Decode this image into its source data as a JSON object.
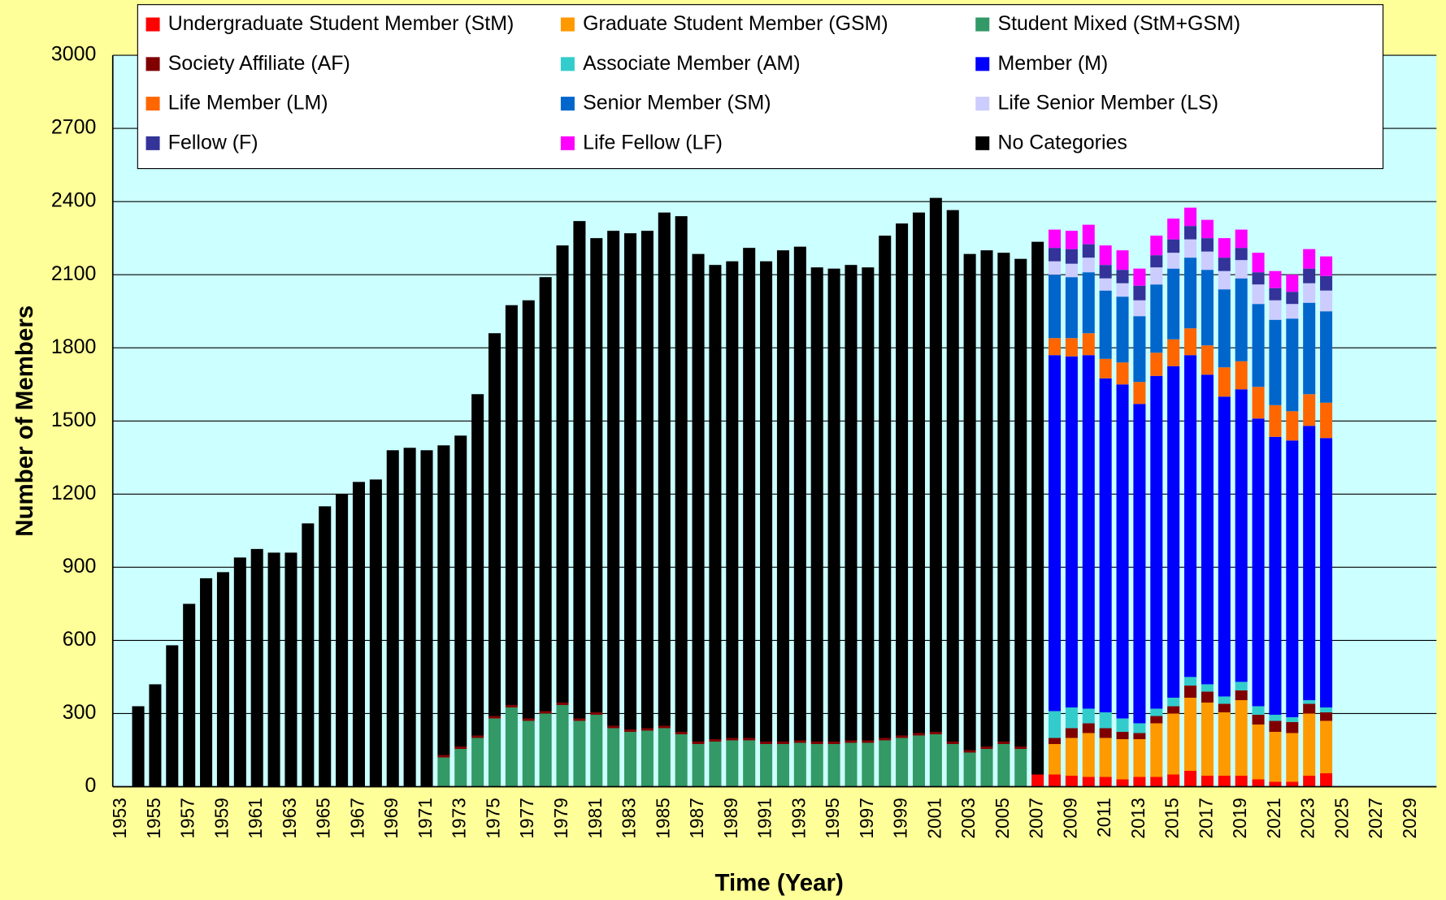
{
  "chart_data": {
    "type": "stacked_bar",
    "x_label": "Time (Year)",
    "y_label": "Number of Members",
    "ylim": [
      0,
      3000
    ],
    "yticks": [
      0,
      300,
      600,
      900,
      1200,
      1500,
      1800,
      2100,
      2400,
      2700,
      3000
    ],
    "grid": true,
    "legend": "top",
    "categories": [
      "1953",
      null,
      "1955",
      null,
      "1957",
      null,
      "1959",
      null,
      "1961",
      null,
      "1963",
      null,
      "1965",
      null,
      "1967",
      null,
      "1969",
      null,
      "1971",
      null,
      "1973",
      null,
      "1975",
      null,
      "1977",
      null,
      "1979",
      null,
      "1981",
      null,
      "1983",
      null,
      "1985",
      null,
      "1987",
      null,
      "1989",
      null,
      "1991",
      null,
      "1993",
      null,
      "1995",
      null,
      "1997",
      null,
      "1999",
      null,
      "2001",
      null,
      "2003",
      null,
      "2005",
      null,
      "2007",
      null,
      "2009",
      null,
      "2011",
      null,
      "2013",
      null,
      "2015",
      null,
      "2017",
      null,
      "2019",
      null,
      "2021",
      null,
      "2023",
      null,
      "2025",
      null,
      "2027",
      null,
      "2029",
      null
    ],
    "series": [
      {
        "name": "Undergraduate Student Member (StM)",
        "color": "#ff0000",
        "values": [
          null,
          null,
          null,
          null,
          null,
          null,
          null,
          null,
          null,
          null,
          null,
          null,
          null,
          null,
          null,
          null,
          null,
          null,
          null,
          null,
          null,
          null,
          null,
          null,
          null,
          null,
          null,
          null,
          null,
          null,
          null,
          null,
          null,
          null,
          null,
          null,
          null,
          null,
          null,
          null,
          null,
          null,
          null,
          null,
          null,
          null,
          null,
          null,
          null,
          null,
          null,
          null,
          null,
          null,
          50,
          50,
          45,
          40,
          40,
          30,
          40,
          40,
          50,
          65,
          45,
          45,
          45,
          30,
          20,
          20,
          45,
          55,
          null,
          null,
          null,
          null,
          null,
          null
        ]
      },
      {
        "name": "Graduate Student Member (GSM)",
        "color": "#ff9900",
        "values": [
          null,
          null,
          null,
          null,
          null,
          null,
          null,
          null,
          null,
          null,
          null,
          null,
          null,
          null,
          null,
          null,
          null,
          null,
          null,
          null,
          null,
          null,
          null,
          null,
          null,
          null,
          null,
          null,
          null,
          null,
          null,
          null,
          null,
          null,
          null,
          null,
          null,
          null,
          null,
          null,
          null,
          null,
          null,
          null,
          null,
          null,
          null,
          null,
          null,
          null,
          null,
          null,
          null,
          null,
          null,
          125,
          155,
          180,
          160,
          165,
          155,
          220,
          250,
          300,
          300,
          260,
          310,
          225,
          205,
          200,
          255,
          215,
          null,
          null,
          null,
          null,
          null,
          null
        ]
      },
      {
        "name": "Student Mixed (StM+GSM)",
        "color": "#339966",
        "values": [
          null,
          null,
          null,
          null,
          null,
          null,
          null,
          null,
          null,
          null,
          null,
          null,
          null,
          null,
          null,
          null,
          null,
          null,
          null,
          120,
          155,
          200,
          280,
          325,
          270,
          300,
          335,
          270,
          295,
          240,
          225,
          230,
          240,
          215,
          175,
          185,
          190,
          190,
          175,
          175,
          180,
          175,
          175,
          180,
          180,
          190,
          200,
          210,
          215,
          175,
          140,
          155,
          175,
          155,
          null,
          null,
          null,
          null,
          null,
          null,
          null,
          null,
          null,
          null,
          null,
          null,
          null,
          null,
          null,
          null,
          null,
          null,
          null,
          null,
          null,
          null,
          null,
          null
        ]
      },
      {
        "name": "Society Affiliate (AF)",
        "color": "#800000",
        "values": [
          null,
          null,
          null,
          null,
          null,
          null,
          null,
          null,
          null,
          null,
          null,
          null,
          null,
          null,
          null,
          null,
          null,
          null,
          null,
          10,
          10,
          10,
          10,
          10,
          10,
          10,
          10,
          10,
          10,
          10,
          10,
          10,
          10,
          10,
          10,
          10,
          10,
          10,
          10,
          10,
          10,
          10,
          10,
          10,
          10,
          10,
          10,
          10,
          10,
          10,
          10,
          10,
          10,
          10,
          null,
          25,
          40,
          40,
          40,
          30,
          25,
          30,
          30,
          50,
          45,
          35,
          40,
          40,
          45,
          45,
          40,
          35,
          null,
          null,
          null,
          null,
          null,
          null
        ]
      },
      {
        "name": "Associate Member (AM)",
        "color": "#33cccc",
        "values": [
          null,
          null,
          null,
          null,
          null,
          null,
          null,
          null,
          null,
          null,
          null,
          null,
          null,
          null,
          null,
          null,
          null,
          null,
          null,
          null,
          null,
          null,
          null,
          null,
          null,
          null,
          null,
          null,
          null,
          null,
          null,
          null,
          null,
          null,
          null,
          null,
          null,
          null,
          null,
          null,
          null,
          null,
          null,
          null,
          null,
          null,
          null,
          null,
          null,
          null,
          null,
          null,
          null,
          null,
          null,
          110,
          85,
          60,
          65,
          55,
          40,
          30,
          35,
          35,
          30,
          30,
          35,
          35,
          25,
          20,
          15,
          20,
          null,
          null,
          null,
          null,
          null,
          null
        ]
      },
      {
        "name": "Member (M)",
        "color": "#0000ff",
        "values": [
          null,
          null,
          null,
          null,
          null,
          null,
          null,
          null,
          null,
          null,
          null,
          null,
          null,
          null,
          null,
          null,
          null,
          null,
          null,
          null,
          null,
          null,
          null,
          null,
          null,
          null,
          null,
          null,
          null,
          null,
          null,
          null,
          null,
          null,
          null,
          null,
          null,
          null,
          null,
          null,
          null,
          null,
          null,
          null,
          null,
          null,
          null,
          null,
          null,
          null,
          null,
          null,
          null,
          null,
          null,
          1460,
          1440,
          1450,
          1370,
          1370,
          1310,
          1365,
          1360,
          1320,
          1270,
          1230,
          1200,
          1180,
          1140,
          1135,
          1125,
          1105,
          null,
          null,
          null,
          null,
          null,
          null
        ]
      },
      {
        "name": "Life Member (LM)",
        "color": "#ff6600",
        "values": [
          null,
          null,
          null,
          null,
          null,
          null,
          null,
          null,
          null,
          null,
          null,
          null,
          null,
          null,
          null,
          null,
          null,
          null,
          null,
          null,
          null,
          null,
          null,
          null,
          null,
          null,
          null,
          null,
          null,
          null,
          null,
          null,
          null,
          null,
          null,
          null,
          null,
          null,
          null,
          null,
          null,
          null,
          null,
          null,
          null,
          null,
          null,
          null,
          null,
          null,
          null,
          null,
          null,
          null,
          null,
          70,
          75,
          90,
          80,
          90,
          90,
          95,
          110,
          110,
          120,
          120,
          115,
          130,
          130,
          120,
          130,
          145,
          null,
          null,
          null,
          null,
          null,
          null
        ]
      },
      {
        "name": "Senior Member (SM)",
        "color": "#0066cc",
        "values": [
          null,
          null,
          null,
          null,
          null,
          null,
          null,
          null,
          null,
          null,
          null,
          null,
          null,
          null,
          null,
          null,
          null,
          null,
          null,
          null,
          null,
          null,
          null,
          null,
          null,
          null,
          null,
          null,
          null,
          null,
          null,
          null,
          null,
          null,
          null,
          null,
          null,
          null,
          null,
          null,
          null,
          null,
          null,
          null,
          null,
          null,
          null,
          null,
          null,
          null,
          null,
          null,
          null,
          null,
          null,
          260,
          250,
          250,
          280,
          270,
          270,
          280,
          290,
          290,
          310,
          320,
          340,
          340,
          350,
          380,
          375,
          375,
          null,
          null,
          null,
          null,
          null,
          null
        ]
      },
      {
        "name": "Life Senior Member (LS)",
        "color": "#ccccff",
        "values": [
          null,
          null,
          null,
          null,
          null,
          null,
          null,
          null,
          null,
          null,
          null,
          null,
          null,
          null,
          null,
          null,
          null,
          null,
          null,
          null,
          null,
          null,
          null,
          null,
          null,
          null,
          null,
          null,
          null,
          null,
          null,
          null,
          null,
          null,
          null,
          null,
          null,
          null,
          null,
          null,
          null,
          null,
          null,
          null,
          null,
          null,
          null,
          null,
          null,
          null,
          null,
          null,
          null,
          null,
          null,
          55,
          55,
          60,
          50,
          55,
          65,
          70,
          65,
          75,
          75,
          75,
          75,
          80,
          80,
          60,
          80,
          85,
          null,
          null,
          null,
          null,
          null,
          null
        ]
      },
      {
        "name": "Fellow  (F)",
        "color": "#333399",
        "values": [
          null,
          null,
          null,
          null,
          null,
          null,
          null,
          null,
          null,
          null,
          null,
          null,
          null,
          null,
          null,
          null,
          null,
          null,
          null,
          null,
          null,
          null,
          null,
          null,
          null,
          null,
          null,
          null,
          null,
          null,
          null,
          null,
          null,
          null,
          null,
          null,
          null,
          null,
          null,
          null,
          null,
          null,
          null,
          null,
          null,
          null,
          null,
          null,
          null,
          null,
          null,
          null,
          null,
          null,
          null,
          55,
          60,
          55,
          55,
          55,
          60,
          50,
          55,
          55,
          55,
          55,
          50,
          50,
          50,
          50,
          60,
          60,
          null,
          null,
          null,
          null,
          null,
          null
        ]
      },
      {
        "name": "Life Fellow  (LF)",
        "color": "#ff00ff",
        "values": [
          null,
          null,
          null,
          null,
          null,
          null,
          null,
          null,
          null,
          null,
          null,
          null,
          null,
          null,
          null,
          null,
          null,
          null,
          null,
          null,
          null,
          null,
          null,
          null,
          null,
          null,
          null,
          null,
          null,
          null,
          null,
          null,
          null,
          null,
          null,
          null,
          null,
          null,
          null,
          null,
          null,
          null,
          null,
          null,
          null,
          null,
          null,
          null,
          null,
          null,
          null,
          null,
          null,
          null,
          null,
          75,
          75,
          80,
          80,
          80,
          70,
          80,
          85,
          75,
          75,
          80,
          75,
          80,
          70,
          70,
          80,
          80,
          null,
          null,
          null,
          null,
          null,
          null
        ]
      },
      {
        "name": "No Categories",
        "color": "#000000",
        "values": [
          null,
          330,
          420,
          580,
          750,
          855,
          880,
          940,
          975,
          960,
          960,
          1080,
          1150,
          1200,
          1250,
          1260,
          1380,
          1390,
          1380,
          1270,
          1275,
          1400,
          1570,
          1640,
          1715,
          1780,
          1875,
          2040,
          1945,
          2030,
          2035,
          2040,
          2105,
          2115,
          2000,
          1945,
          1955,
          2010,
          1970,
          2015,
          2025,
          1945,
          1940,
          1950,
          1940,
          2060,
          2100,
          2135,
          2190,
          2180,
          2035,
          2035,
          2005,
          2000,
          2185,
          null,
          null,
          null,
          null,
          null,
          null,
          null,
          null,
          null,
          null,
          null,
          null,
          null,
          null,
          null,
          null,
          null,
          null,
          null,
          null,
          null,
          null,
          null
        ]
      }
    ]
  }
}
